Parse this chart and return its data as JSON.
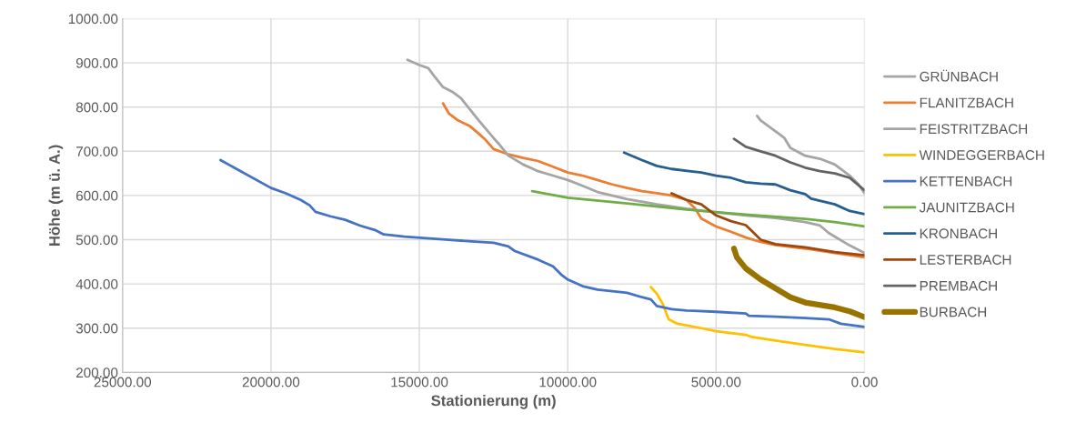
{
  "chart_data": {
    "type": "line",
    "xlabel": "Stationierung (m)",
    "ylabel": "Höhe (m ü. A.)",
    "xlim": [
      25000,
      0
    ],
    "ylim": [
      200,
      1000
    ],
    "xticks": [
      {
        "value": 25000,
        "label": "25000.00"
      },
      {
        "value": 20000,
        "label": "20000.00"
      },
      {
        "value": 15000,
        "label": "15000.00"
      },
      {
        "value": 10000,
        "label": "10000.00"
      },
      {
        "value": 5000,
        "label": "5000.00"
      },
      {
        "value": 0,
        "label": "0.00"
      }
    ],
    "yticks": [
      {
        "value": 200,
        "label": "200.00"
      },
      {
        "value": 300,
        "label": "300.00"
      },
      {
        "value": 400,
        "label": "400.00"
      },
      {
        "value": 500,
        "label": "500.00"
      },
      {
        "value": 600,
        "label": "600.00"
      },
      {
        "value": 700,
        "label": "700.00"
      },
      {
        "value": 800,
        "label": "800.00"
      },
      {
        "value": 900,
        "label": "900.00"
      },
      {
        "value": 1000,
        "label": "1000.00"
      }
    ],
    "grid": true,
    "legend": "right",
    "marker": "none",
    "line_style": "solid",
    "series": [
      {
        "name": "GRÜNBACH",
        "color": "#a5a5a5",
        "x": [
          3620,
          3500,
          3000,
          2700,
          2500,
          2000,
          1500,
          1000,
          500,
          200,
          0
        ],
        "values": [
          780,
          770,
          745,
          730,
          708,
          690,
          683,
          670,
          645,
          625,
          605
        ]
      },
      {
        "name": "FLANITZBACH",
        "color": "#ed7d31",
        "x": [
          14200,
          14000,
          13700,
          13300,
          13000,
          12800,
          12500,
          12000,
          11500,
          11000,
          10500,
          10000,
          9500,
          9000,
          8500,
          8000,
          7500,
          7000,
          6500,
          6000,
          5700,
          5500,
          5000,
          4500,
          4000,
          3500,
          3000,
          2000,
          1000,
          0
        ],
        "values": [
          808,
          785,
          770,
          757,
          740,
          728,
          705,
          693,
          685,
          678,
          665,
          652,
          645,
          635,
          625,
          617,
          610,
          605,
          600,
          590,
          570,
          548,
          530,
          518,
          505,
          495,
          488,
          480,
          470,
          460
        ]
      },
      {
        "name": "FEISTRITZBACH",
        "color": "#a5a5a5",
        "x": [
          15400,
          15000,
          14700,
          14500,
          14200,
          13900,
          13600,
          13300,
          13000,
          12500,
          12300,
          12000,
          11500,
          11000,
          10500,
          10000,
          9500,
          9000,
          8000,
          7000,
          6000,
          5000,
          4000,
          3000,
          2000,
          1500,
          1200,
          500,
          0
        ],
        "values": [
          907,
          895,
          888,
          870,
          845,
          835,
          820,
          795,
          770,
          730,
          715,
          690,
          670,
          655,
          645,
          635,
          622,
          608,
          592,
          580,
          570,
          562,
          555,
          549,
          540,
          532,
          515,
          487,
          470
        ]
      },
      {
        "name": "WINDEGGERBACH",
        "color": "#ffc000",
        "x": [
          7200,
          7000,
          6800,
          6600,
          6300,
          5500,
          5000,
          4000,
          3800,
          3000,
          2000,
          1000,
          0
        ],
        "values": [
          393,
          378,
          355,
          320,
          310,
          300,
          293,
          285,
          280,
          272,
          262,
          253,
          245
        ]
      },
      {
        "name": "KETTENBACH",
        "color": "#4472c4",
        "x": [
          21700,
          20000,
          19500,
          19000,
          18700,
          18500,
          18000,
          17500,
          17000,
          16500,
          16200,
          15500,
          14000,
          13000,
          12500,
          12000,
          11800,
          11000,
          10500,
          10200,
          10000,
          9500,
          9000,
          8000,
          7500,
          7200,
          7000,
          6500,
          6000,
          5000,
          4000,
          3900,
          3000,
          2000,
          1200,
          800,
          0
        ],
        "values": [
          680,
          617,
          605,
          590,
          578,
          563,
          553,
          545,
          532,
          522,
          512,
          507,
          500,
          495,
          493,
          485,
          475,
          455,
          440,
          420,
          410,
          395,
          387,
          380,
          370,
          365,
          350,
          343,
          340,
          337,
          333,
          328,
          326,
          323,
          320,
          310,
          303
        ]
      },
      {
        "name": "JAUNITZBACH",
        "color": "#70ad47",
        "x": [
          11200,
          10000,
          8000,
          6000,
          4000,
          2000,
          1000,
          0
        ],
        "values": [
          610,
          595,
          582,
          568,
          557,
          547,
          540,
          530
        ]
      },
      {
        "name": "KRONBACH",
        "color": "#255e91",
        "x": [
          8100,
          7500,
          7000,
          6500,
          5500,
          5000,
          4500,
          4000,
          3500,
          3000,
          2500,
          2000,
          1800,
          1000,
          500,
          0
        ],
        "values": [
          697,
          680,
          667,
          660,
          652,
          645,
          640,
          630,
          627,
          625,
          612,
          603,
          593,
          580,
          565,
          558
        ]
      },
      {
        "name": "LESTERBACH",
        "color": "#9e480e",
        "x": [
          6500,
          6000,
          5500,
          5000,
          4500,
          4000,
          3800,
          3500,
          3000,
          2000,
          1000,
          0
        ],
        "values": [
          605,
          590,
          580,
          555,
          542,
          533,
          520,
          500,
          490,
          483,
          472,
          465
        ]
      },
      {
        "name": "PREMBACH",
        "color": "#636363",
        "x": [
          4400,
          4000,
          3500,
          3000,
          2500,
          2000,
          1500,
          1000,
          500,
          0
        ],
        "values": [
          728,
          710,
          700,
          690,
          675,
          663,
          655,
          650,
          640,
          612
        ]
      },
      {
        "name": "BURBACH",
        "color": "#997300",
        "x": [
          4400,
          4300,
          4000,
          3500,
          3000,
          2500,
          2000,
          1000,
          500,
          0
        ],
        "values": [
          480,
          460,
          435,
          410,
          390,
          370,
          358,
          347,
          338,
          325
        ]
      }
    ]
  }
}
